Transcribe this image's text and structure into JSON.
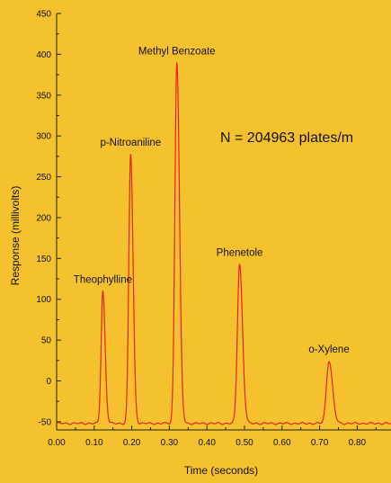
{
  "colors": {
    "background": "#f4c22e",
    "trace": "#e8231f",
    "axis": "#222222",
    "text": "#111111"
  },
  "annotation": "N = 204963 plates/m",
  "chart_data": {
    "type": "line",
    "title": "",
    "xlabel": "Time (seconds)",
    "ylabel": "Response (millivolts)",
    "xlim": [
      0.0,
      0.89
    ],
    "ylim": [
      -60,
      450
    ],
    "x_ticks": [
      "0.00",
      "0.10",
      "0.20",
      "0.30",
      "0.40",
      "0.50",
      "0.60",
      "0.70",
      "0.80"
    ],
    "y_ticks": [
      "-50",
      "0",
      "50",
      "100",
      "150",
      "200",
      "250",
      "300",
      "350",
      "400",
      "450"
    ],
    "grid": false,
    "baseline": -52,
    "peaks": [
      {
        "label": "Theophylline",
        "time": 0.123,
        "value": 110
      },
      {
        "label": "p-Nitroaniline",
        "time": 0.197,
        "value": 278
      },
      {
        "label": "Methyl Benzoate",
        "time": 0.32,
        "value": 390
      },
      {
        "label": "Phenetole",
        "time": 0.487,
        "value": 143
      },
      {
        "label": "o-Xylene",
        "time": 0.725,
        "value": 25
      }
    ]
  }
}
